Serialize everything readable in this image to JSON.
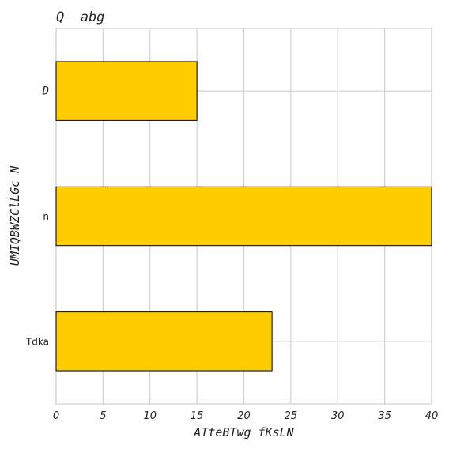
{
  "chart_data": {
    "type": "bar",
    "orientation": "horizontal",
    "title": "Q  abg",
    "xlabel": "ATteBTwg fKsLN",
    "ylabel": "UMIQBWZClLGc N",
    "categories": [
      "Tdka",
      "n",
      "D"
    ],
    "values": [
      23,
      40,
      15
    ],
    "xlim": [
      0,
      40
    ],
    "x_ticks": [
      "0",
      "5",
      "10",
      "15",
      "20",
      "25",
      "30",
      "35",
      "40"
    ],
    "grid": true,
    "bar_color": "#ffcc00",
    "edge_color": "#000000",
    "gridline_color": "#d0d0d0"
  }
}
